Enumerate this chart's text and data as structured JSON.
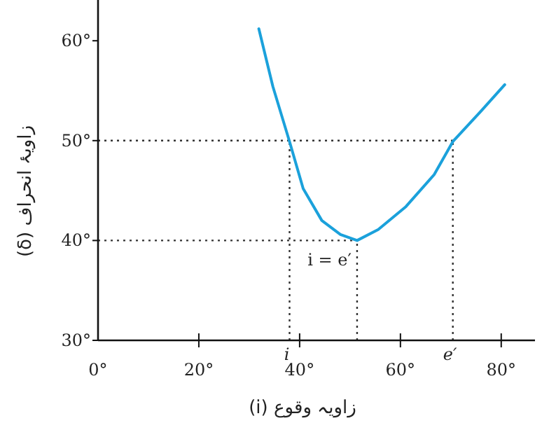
{
  "chart_data": {
    "type": "line",
    "xlabel": "زاویہ وقوع (i)",
    "ylabel": "زاویۂ انحراف (δ)",
    "x": [
      31.9,
      34.7,
      38,
      40.7,
      44.4,
      48.1,
      51.4,
      55.6,
      61.1,
      66.7,
      70.4,
      75.9,
      80.7
    ],
    "series": [
      {
        "color": "#1ba1db",
        "values": [
          61.2,
          55.4,
          49.9,
          45.2,
          42.0,
          40.6,
          40.0,
          41.1,
          43.4,
          46.6,
          49.9,
          52.9,
          55.6
        ]
      }
    ],
    "xlim": [
      0,
      86.7
    ],
    "ylim": [
      30,
      63.8
    ],
    "xticks": [
      {
        "value": 0,
        "label": "0°"
      },
      {
        "value": 20,
        "label": "20°"
      },
      {
        "value": 40,
        "label": "40°"
      },
      {
        "value": 60,
        "label": "60°"
      },
      {
        "value": 80,
        "label": "80°"
      }
    ],
    "yticks": [
      {
        "value": 30,
        "label": "30°"
      },
      {
        "value": 40,
        "label": "40°"
      },
      {
        "value": 50,
        "label": "50°"
      },
      {
        "value": 60,
        "label": "60°"
      }
    ],
    "ref_lines": [
      {
        "axis": "y",
        "value": 50,
        "line_style": "dotted"
      },
      {
        "axis": "y",
        "value": 40,
        "line_style": "dotted"
      },
      {
        "axis": "x",
        "value": 38,
        "label": "i",
        "line_style": "dotted"
      },
      {
        "axis": "x",
        "value": 51.4,
        "line_style": "dotted"
      },
      {
        "axis": "x",
        "value": 70.4,
        "label": "e′",
        "line_style": "dotted"
      }
    ],
    "annotations": [
      {
        "text": "i = e′",
        "x": 51.4,
        "y": 40
      }
    ],
    "line_style": "solid"
  }
}
